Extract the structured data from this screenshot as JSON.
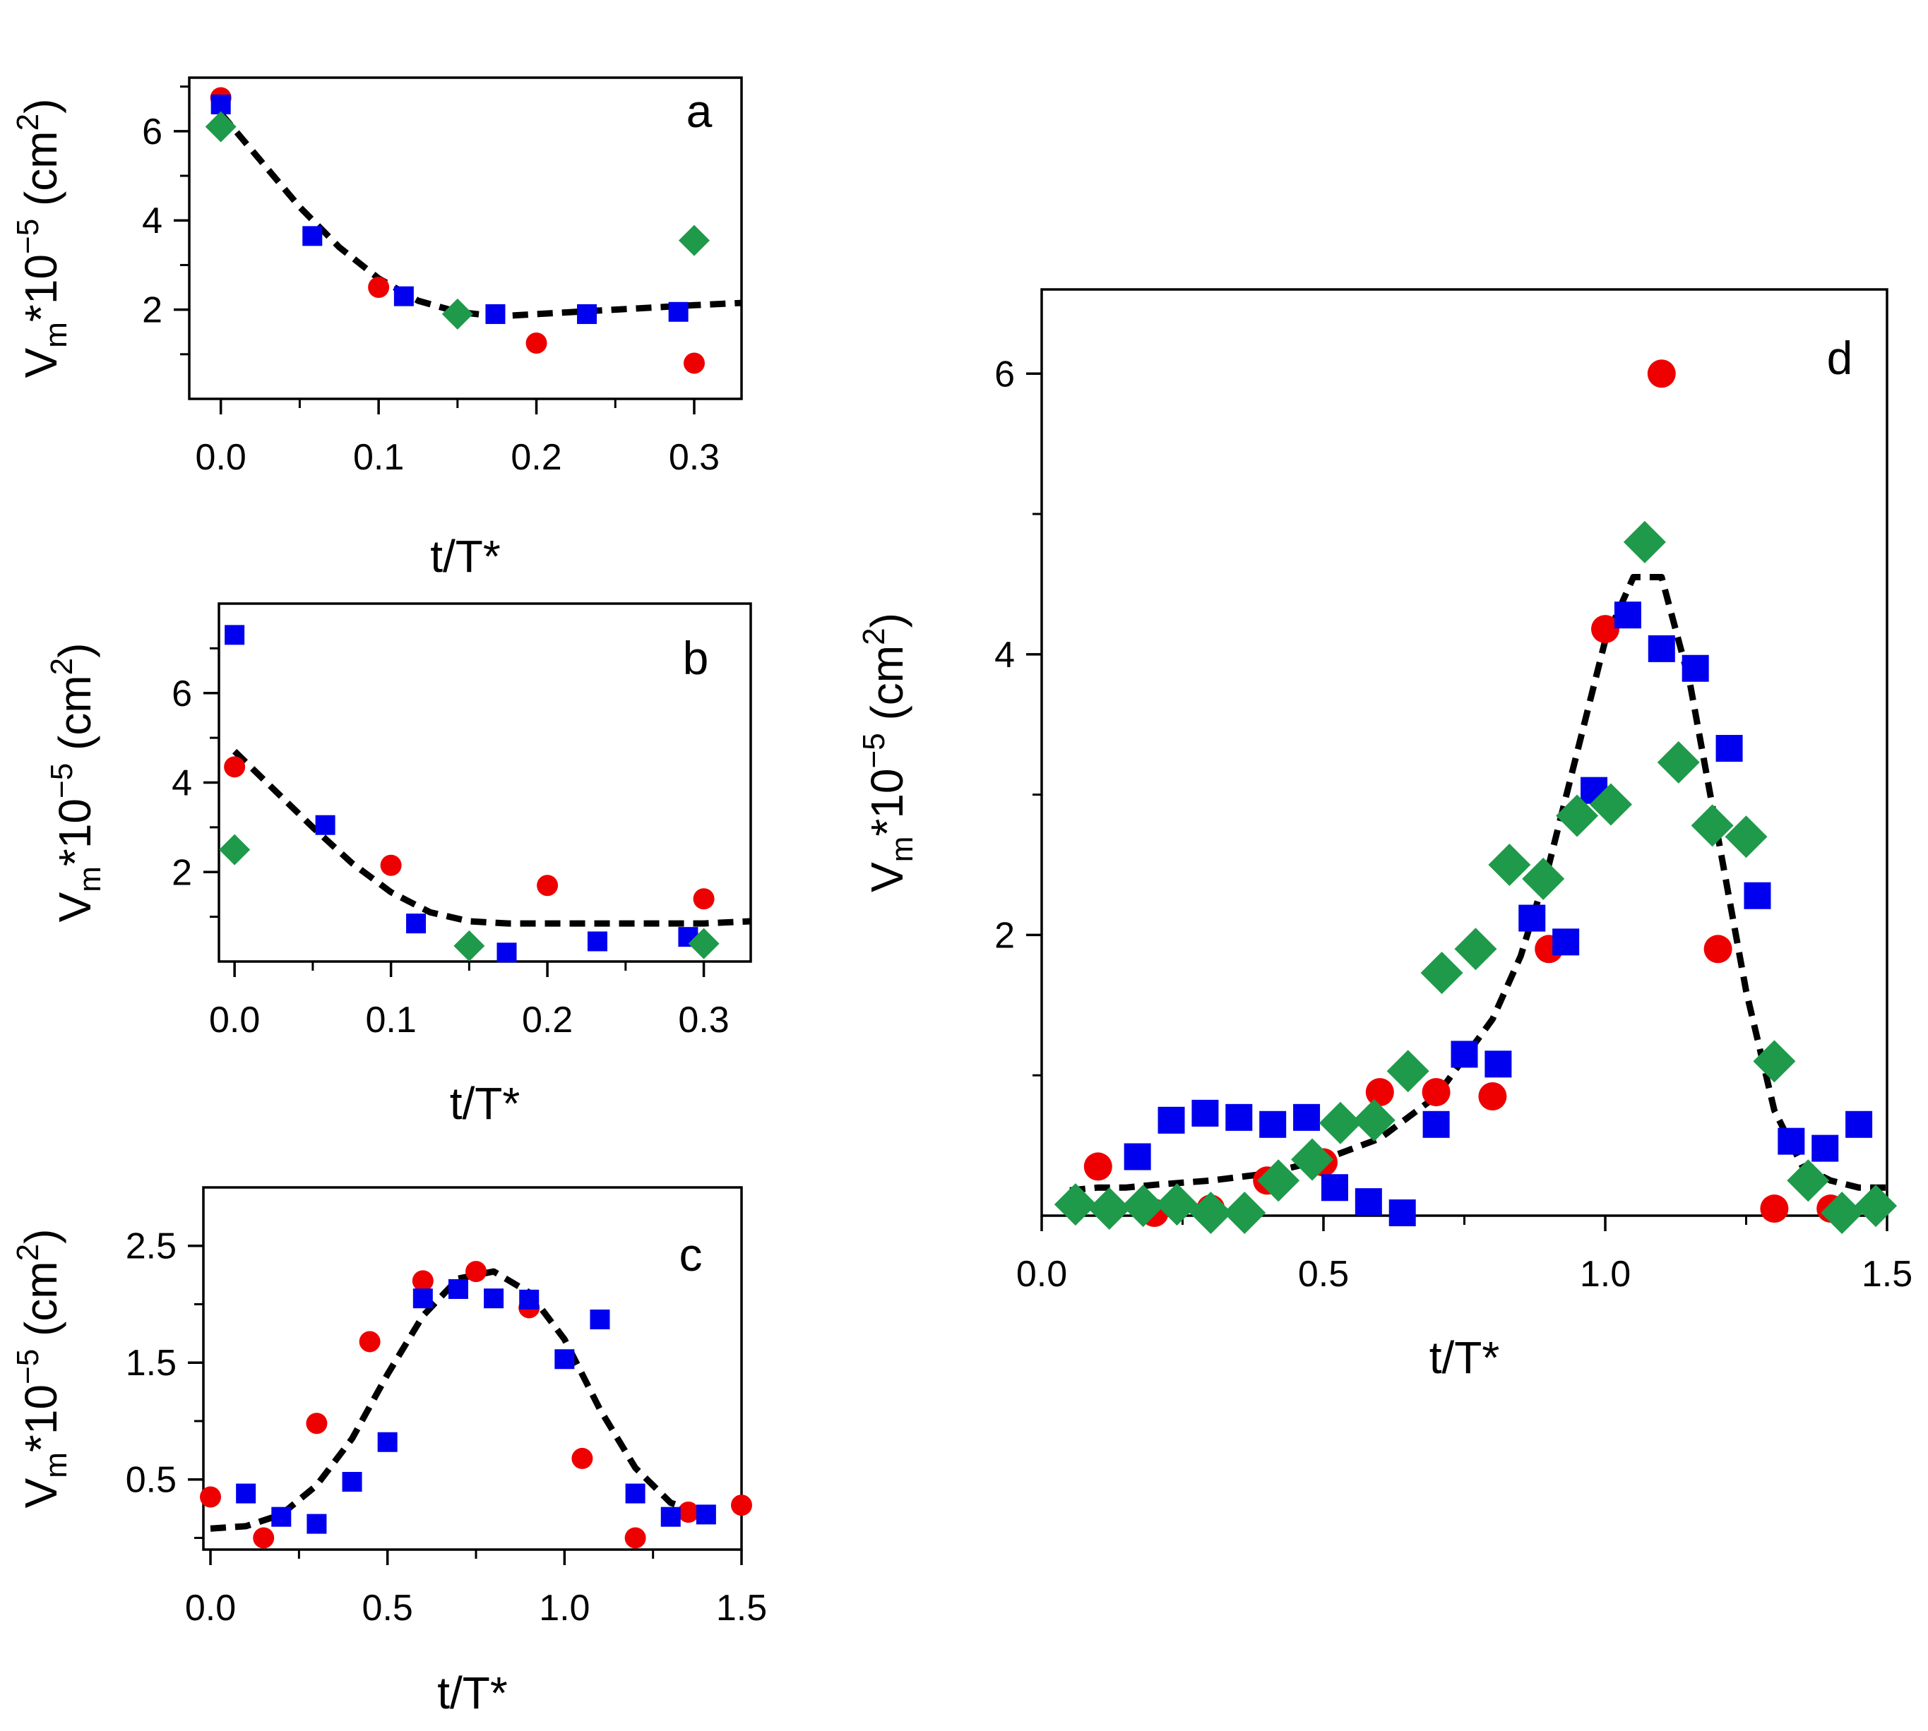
{
  "colors": {
    "red": "#ee0000",
    "blue": "#0000ee",
    "green": "#1e9a4a",
    "fit": "#000000"
  },
  "chart_data": [
    {
      "id": "a",
      "type": "scatter",
      "panel_letter": "a",
      "xlabel": "t/T*",
      "ylabel": {
        "base": "V",
        "sub": "m",
        "mid": "*10",
        "sup_exp": "−5",
        "unit_open": " (cm",
        "sup_unit": "2",
        "unit_close": ")"
      },
      "xlim": [
        -0.02,
        0.33
      ],
      "ylim": [
        0,
        7.2
      ],
      "xticks": [
        0.0,
        0.1,
        0.2,
        0.3
      ],
      "xtick_labels": [
        "0.0",
        "0.1",
        "0.2",
        "0.3"
      ],
      "xminor": [
        0.05,
        0.15,
        0.25
      ],
      "yticks": [
        2,
        4,
        6
      ],
      "ytick_labels": [
        "2",
        "4",
        "6"
      ],
      "yminor": [
        1,
        3,
        5,
        7
      ],
      "series": [
        {
          "marker": "circle",
          "color": "red",
          "x": [
            0.0,
            0.1,
            0.2,
            0.3
          ],
          "y": [
            6.75,
            2.5,
            1.25,
            0.8
          ]
        },
        {
          "marker": "square",
          "color": "blue",
          "x": [
            0.0,
            0.058,
            0.116,
            0.174,
            0.232,
            0.29
          ],
          "y": [
            6.6,
            3.65,
            2.3,
            1.9,
            1.9,
            1.95
          ]
        },
        {
          "marker": "diamond",
          "color": "green",
          "x": [
            0.0,
            0.15,
            0.3
          ],
          "y": [
            6.1,
            1.9,
            3.55
          ]
        }
      ],
      "fit": {
        "x": [
          0.0,
          0.025,
          0.05,
          0.075,
          0.1,
          0.125,
          0.15,
          0.175,
          0.2,
          0.25,
          0.3,
          0.33
        ],
        "y": [
          6.4,
          5.35,
          4.3,
          3.4,
          2.7,
          2.2,
          1.95,
          1.85,
          1.9,
          2.0,
          2.1,
          2.15
        ]
      }
    },
    {
      "id": "b",
      "type": "scatter",
      "panel_letter": "b",
      "xlabel": "t/T*",
      "ylabel": {
        "base": "V",
        "sub": "m",
        "mid": "*10",
        "sup_exp": "−5",
        "unit_open": " (cm",
        "sup_unit": "2",
        "unit_close": ")"
      },
      "xlim": [
        -0.01,
        0.33
      ],
      "ylim": [
        0,
        8.0
      ],
      "xticks": [
        0.0,
        0.1,
        0.2,
        0.3
      ],
      "xtick_labels": [
        "0.0",
        "0.1",
        "0.2",
        "0.3"
      ],
      "xminor": [
        0.05,
        0.15,
        0.25
      ],
      "yticks": [
        2,
        4,
        6
      ],
      "ytick_labels": [
        "2",
        "4",
        "6"
      ],
      "yminor": [
        1,
        3,
        5,
        7
      ],
      "series": [
        {
          "marker": "circle",
          "color": "red",
          "x": [
            0.0,
            0.1,
            0.2,
            0.3
          ],
          "y": [
            4.35,
            2.15,
            1.7,
            1.4
          ]
        },
        {
          "marker": "square",
          "color": "blue",
          "x": [
            0.0,
            0.058,
            0.116,
            0.174,
            0.232,
            0.29
          ],
          "y": [
            7.3,
            3.05,
            0.85,
            0.2,
            0.45,
            0.55
          ]
        },
        {
          "marker": "diamond",
          "color": "green",
          "x": [
            0.0,
            0.15,
            0.3
          ],
          "y": [
            2.5,
            0.35,
            0.4
          ]
        }
      ],
      "fit": {
        "x": [
          0.0,
          0.025,
          0.05,
          0.075,
          0.1,
          0.125,
          0.15,
          0.175,
          0.2,
          0.25,
          0.3,
          0.33
        ],
        "y": [
          4.7,
          3.85,
          3.0,
          2.2,
          1.55,
          1.1,
          0.9,
          0.85,
          0.85,
          0.85,
          0.85,
          0.9
        ]
      }
    },
    {
      "id": "c",
      "type": "scatter",
      "panel_letter": "c",
      "xlabel": "t/T*",
      "ylabel": {
        "base": "V",
        "sub": "m",
        "mid": "*10",
        "sup_exp": "−5",
        "unit_open": " (cm",
        "sup_unit": "2",
        "unit_close": ")"
      },
      "xlim": [
        -0.02,
        1.5
      ],
      "ylim": [
        -0.1,
        3.0
      ],
      "xticks": [
        0.0,
        0.5,
        1.0,
        1.5
      ],
      "xtick_labels": [
        "0.0",
        "0.5",
        "1.0",
        "1.5"
      ],
      "xminor": [
        0.25,
        0.75,
        1.25
      ],
      "yticks": [
        0.5,
        1.5,
        2.5
      ],
      "ytick_labels": [
        "0.5",
        "1.5",
        "2.5"
      ],
      "yminor": [
        0,
        1,
        2
      ],
      "series": [
        {
          "marker": "circle",
          "color": "red",
          "x": [
            0.0,
            0.15,
            0.3,
            0.45,
            0.6,
            0.75,
            0.9,
            1.05,
            1.2,
            1.35,
            1.5
          ],
          "y": [
            0.35,
            0.0,
            0.98,
            1.68,
            2.2,
            2.28,
            1.97,
            0.68,
            0.0,
            0.22,
            0.28
          ]
        },
        {
          "marker": "square",
          "color": "blue",
          "x": [
            0.1,
            0.2,
            0.3,
            0.4,
            0.5,
            0.6,
            0.7,
            0.8,
            0.9,
            1.0,
            1.1,
            1.2,
            1.3,
            1.4
          ],
          "y": [
            0.38,
            0.18,
            0.12,
            0.48,
            0.82,
            2.05,
            2.13,
            2.05,
            2.04,
            1.53,
            1.87,
            0.38,
            0.18,
            0.2
          ]
        }
      ],
      "fit": {
        "x": [
          0.0,
          0.1,
          0.2,
          0.3,
          0.4,
          0.5,
          0.6,
          0.7,
          0.8,
          0.9,
          1.0,
          1.1,
          1.2,
          1.3,
          1.4
        ],
        "y": [
          0.08,
          0.1,
          0.2,
          0.45,
          0.85,
          1.4,
          1.9,
          2.22,
          2.28,
          2.1,
          1.7,
          1.1,
          0.6,
          0.3,
          0.2
        ]
      }
    },
    {
      "id": "d",
      "type": "scatter",
      "panel_letter": "d",
      "xlabel": "t/T*",
      "ylabel": {
        "base": "V",
        "sub": "m",
        "mid": "*10",
        "sup_exp": "−5",
        "unit_open": " (cm",
        "sup_unit": "2",
        "unit_close": ")"
      },
      "xlim": [
        0.0,
        1.5
      ],
      "ylim": [
        0.0,
        6.6
      ],
      "xticks": [
        0.0,
        0.5,
        1.0,
        1.5
      ],
      "xtick_labels": [
        "0.0",
        "0.5",
        "1.0",
        "1.5"
      ],
      "xminor": [
        0.25,
        0.75,
        1.25
      ],
      "yticks": [
        2,
        4,
        6
      ],
      "ytick_labels": [
        "2",
        "4",
        "6"
      ],
      "yminor": [
        1,
        3,
        5
      ],
      "series": [
        {
          "marker": "circle",
          "color": "red",
          "x": [
            0.1,
            0.2,
            0.3,
            0.4,
            0.5,
            0.6,
            0.7,
            0.8,
            0.9,
            1.0,
            1.1,
            1.2,
            1.3,
            1.4
          ],
          "y": [
            0.35,
            0.02,
            0.05,
            0.25,
            0.38,
            0.88,
            0.88,
            0.85,
            1.9,
            4.18,
            6.0,
            1.9,
            0.05,
            0.05
          ]
        },
        {
          "marker": "square",
          "color": "blue",
          "x": [
            0.17,
            0.23,
            0.29,
            0.35,
            0.41,
            0.47,
            0.52,
            0.58,
            0.64,
            0.7,
            0.75,
            0.81,
            0.87,
            0.93,
            0.98,
            1.04,
            1.1,
            1.16,
            1.22,
            1.27,
            1.33,
            1.39,
            1.45
          ],
          "y": [
            0.42,
            0.68,
            0.73,
            0.7,
            0.65,
            0.7,
            0.2,
            0.1,
            0.02,
            0.65,
            1.15,
            1.08,
            2.12,
            1.95,
            3.03,
            4.28,
            4.04,
            3.9,
            3.33,
            2.28,
            0.53,
            0.48,
            0.65
          ]
        },
        {
          "marker": "diamond",
          "color": "green",
          "x": [
            0.06,
            0.12,
            0.18,
            0.24,
            0.3,
            0.36,
            0.42,
            0.48,
            0.53,
            0.59,
            0.65,
            0.71,
            0.77,
            0.83,
            0.89,
            0.95,
            1.01,
            1.07,
            1.13,
            1.19,
            1.25,
            1.3,
            1.36,
            1.42,
            1.48
          ],
          "y": [
            0.08,
            0.05,
            0.07,
            0.08,
            0.02,
            0.02,
            0.25,
            0.4,
            0.66,
            0.68,
            1.03,
            1.73,
            1.9,
            2.5,
            2.4,
            2.85,
            2.93,
            4.8,
            3.23,
            2.78,
            2.7,
            1.1,
            0.25,
            0.02,
            0.07
          ]
        }
      ],
      "fit": {
        "x": [
          0.05,
          0.1,
          0.15,
          0.2,
          0.3,
          0.4,
          0.5,
          0.6,
          0.7,
          0.8,
          0.85,
          0.9,
          0.95,
          1.0,
          1.05,
          1.1,
          1.15,
          1.2,
          1.25,
          1.3,
          1.35,
          1.4,
          1.45,
          1.5
        ],
        "y": [
          0.18,
          0.2,
          0.2,
          0.22,
          0.25,
          0.3,
          0.4,
          0.55,
          0.85,
          1.4,
          1.85,
          2.5,
          3.3,
          4.1,
          4.55,
          4.55,
          3.8,
          2.7,
          1.6,
          0.75,
          0.35,
          0.25,
          0.2,
          0.2
        ]
      }
    }
  ]
}
